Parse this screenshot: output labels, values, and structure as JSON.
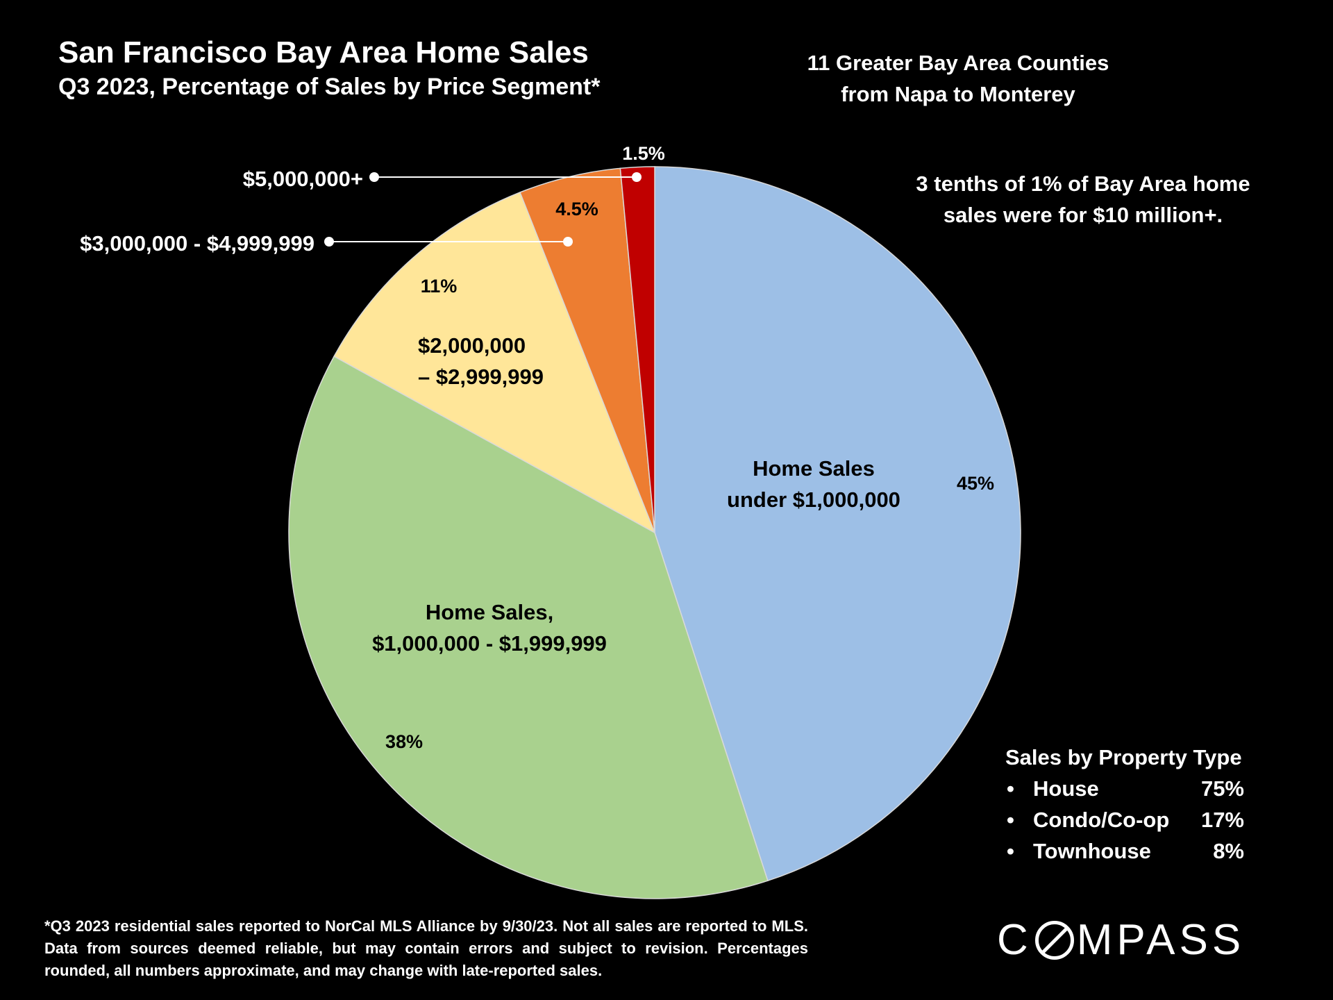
{
  "chart_data": {
    "type": "pie",
    "title": "San Francisco Bay Area Home Sales",
    "subtitle": "Q3 2023, Percentage of Sales by Price Segment*",
    "slices": [
      {
        "label_lines": [
          "Home Sales",
          "under $1,000,000"
        ],
        "value": 45,
        "value_label": "45%",
        "color": "#9dbfe6"
      },
      {
        "label_lines": [
          "Home Sales,",
          "$1,000,000 - $1,999,999"
        ],
        "value": 38,
        "value_label": "38%",
        "color": "#a9d18e"
      },
      {
        "label_lines": [
          "$2,000,000",
          "– $2,999,999"
        ],
        "value": 11,
        "value_label": "11%",
        "color": "#ffe699"
      },
      {
        "label_lines": [
          "$3,000,000 - $4,999,999"
        ],
        "value": 4.5,
        "value_label": "4.5%",
        "color": "#ed7d31"
      },
      {
        "label_lines": [
          "$5,000,000+"
        ],
        "value": 1.5,
        "value_label": "1.5%",
        "color": "#c00000"
      }
    ]
  },
  "region_note": [
    "11 Greater Bay Area Counties",
    "from Napa to Monterey"
  ],
  "annotation": [
    "3 tenths of 1% of Bay Area home",
    "sales were for $10 million+."
  ],
  "property_type": {
    "heading": "Sales by Property Type",
    "bullet": "•",
    "rows": [
      {
        "name": "House",
        "value": "75%"
      },
      {
        "name": "Condo/Co-op",
        "value": "17%"
      },
      {
        "name": "Townhouse",
        "value": "8%"
      }
    ]
  },
  "footnote": "*Q3 2023 residential sales reported to NorCal MLS Alliance by 9/30/23. Not all sales are reported to MLS. Data from sources deemed reliable, but may contain errors and subject to revision. Percentages rounded, all numbers approximate, and may change with late-reported sales.",
  "logo": {
    "left": "C",
    "right": "MPASS"
  }
}
